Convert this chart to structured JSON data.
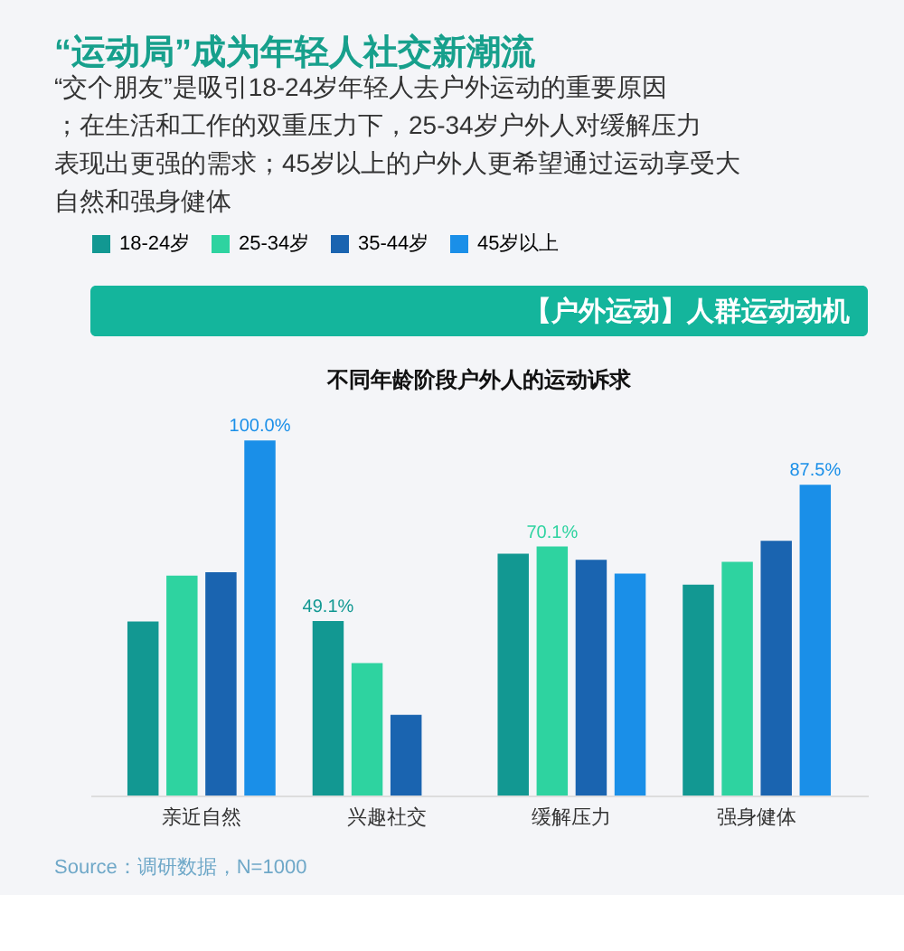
{
  "chart_data": {
    "type": "bar",
    "title": "“运动局”成为年轻人社交新潮流",
    "subtitle": "“交个朋友”是吸引18-24岁年轻人去户外运动的重要原因；在生活和工作的双重压力下，25-34岁户外人对缓解压力表现出更强的需求；45岁以上的户外人更希望通过运动享受大自然和强身健体",
    "annotations": [
      "【户外运动】人群运动动机",
      "不同年龄阶段户外人的运动诉求",
      "Source：调研数据，N=1000"
    ],
    "categories": [
      "亲近自然",
      "兴趣社交",
      "缓解压力",
      "强身健体"
    ],
    "series": [
      {
        "name": "18-24岁",
        "color": "#129892",
        "values": [
          49.0,
          49.1,
          68.1,
          59.4
        ],
        "value_labels": [
          null,
          "49.1%",
          null,
          null
        ]
      },
      {
        "name": "25-34岁",
        "color": "#2ed3a0",
        "values": [
          61.9,
          37.3,
          70.1,
          65.8
        ],
        "value_labels": [
          null,
          null,
          "70.1%",
          null
        ]
      },
      {
        "name": "35-44岁",
        "color": "#1a64b0",
        "values": [
          62.9,
          22.7,
          66.4,
          71.7
        ],
        "value_labels": [
          null,
          null,
          null,
          null
        ]
      },
      {
        "name": "45岁以上",
        "color": "#1a8fe8",
        "values": [
          100.0,
          null,
          62.5,
          87.5
        ],
        "value_labels": [
          "100.0%",
          null,
          null,
          "87.5%"
        ]
      }
    ],
    "legend": "top",
    "grid": false
  }
}
